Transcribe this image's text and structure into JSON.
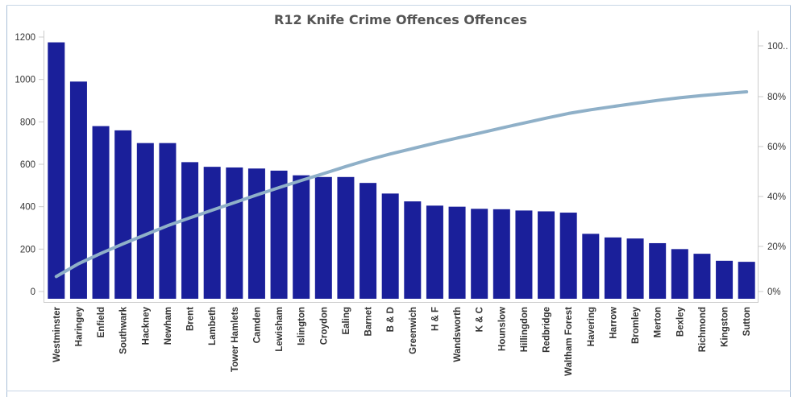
{
  "chart_data": {
    "type": "bar",
    "title": "R12 Knife Crime Offences Offences",
    "xlabel": "",
    "ylabel": "",
    "ylim": [
      0,
      1250
    ],
    "y_ticks": [
      "0",
      "200",
      "400",
      "600",
      "800",
      "1000",
      "1200"
    ],
    "y2lim": [
      0,
      1.0
    ],
    "y2_ticks": [
      "0%",
      "20%",
      "40%",
      "60%",
      "80%",
      "100.."
    ],
    "grid": false,
    "categories": [
      "Westminster",
      "Haringey",
      "Enfield",
      "Southwark",
      "Hackney",
      "Newham",
      "Brent",
      "Lambeth",
      "Tower Hamlets",
      "Camden",
      "Lewisham",
      "Islington",
      "Croydon",
      "Ealing",
      "Barnet",
      "B & D",
      "Greenwich",
      "H & F",
      "Wandsworth",
      "K & C",
      "Hounslow",
      "Hillingdon",
      "Redbridge",
      "Waltham Forest",
      "Havering",
      "Harrow",
      "Bromley",
      "Merton",
      "Bexley",
      "Richmond",
      "Kingston",
      "Sutton"
    ],
    "series": [
      {
        "type": "bar",
        "values": [
          1175,
          990,
          780,
          760,
          700,
          700,
          610,
          588,
          585,
          580,
          570,
          548,
          540,
          540,
          512,
          462,
          425,
          405,
          400,
          390,
          388,
          382,
          378,
          372,
          272,
          255,
          250,
          228,
          200,
          178,
          145,
          140
        ]
      },
      {
        "type": "line",
        "axis": "right",
        "values": [
          0.061,
          0.113,
          0.155,
          0.194,
          0.231,
          0.268,
          0.3,
          0.331,
          0.362,
          0.393,
          0.423,
          0.452,
          0.48,
          0.509,
          0.536,
          0.56,
          0.582,
          0.604,
          0.625,
          0.645,
          0.666,
          0.686,
          0.706,
          0.725,
          0.74,
          0.753,
          0.766,
          0.778,
          0.789,
          0.798,
          0.806,
          0.813
        ]
      }
    ],
    "colors": {
      "bars": "#1a1f9a",
      "line": "#8fb0c8"
    }
  }
}
